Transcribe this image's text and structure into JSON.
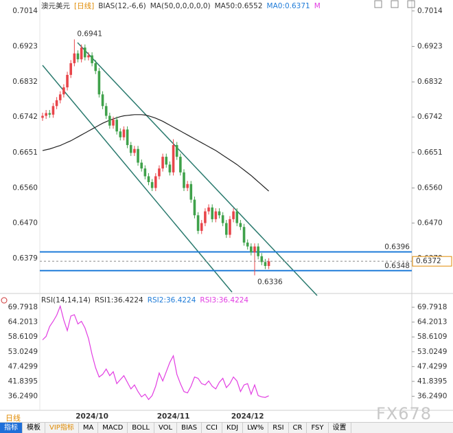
{
  "chart_data": [
    {
      "type": "candlestick",
      "symbol": "澳元美元",
      "period_tag": "[日线]",
      "legend": [
        "BIAS(12,-6,6)",
        "MA(50,0,0,0,0,0)",
        "MA50:0.6552",
        "MA0:0.6371",
        "M"
      ],
      "categories": [
        null,
        null,
        null,
        null,
        null,
        null,
        null,
        null,
        null,
        null,
        null,
        null,
        null,
        null,
        "2024/10",
        null,
        null,
        null,
        null,
        null,
        null,
        null,
        null,
        null,
        null,
        null,
        null,
        null,
        null,
        null,
        null,
        null,
        null,
        null,
        null,
        null,
        null,
        "2024/11",
        null,
        null,
        null,
        null,
        null,
        null,
        null,
        null,
        null,
        null,
        null,
        null,
        null,
        null,
        null,
        null,
        null,
        null,
        null,
        null,
        "2024/12",
        null,
        null,
        null,
        null,
        null,
        null
      ],
      "open": [
        0.674,
        0.6745,
        0.6752,
        0.6748,
        0.677,
        0.6785,
        0.68,
        0.6818,
        0.685,
        0.688,
        0.6905,
        0.689,
        0.692,
        0.6895,
        0.69,
        0.688,
        0.686,
        0.68,
        0.677,
        0.6745,
        0.672,
        0.6735,
        0.6705,
        0.669,
        0.671,
        0.667,
        0.665,
        0.666,
        0.6625,
        0.661,
        0.659,
        0.6575,
        0.656,
        0.659,
        0.661,
        0.664,
        0.662,
        0.66,
        0.667,
        0.664,
        0.66,
        0.656,
        0.657,
        0.653,
        0.649,
        0.645,
        0.647,
        0.65,
        0.651,
        0.648,
        0.65,
        0.649,
        0.647,
        0.644,
        0.648,
        0.65,
        0.647,
        0.646,
        0.642,
        0.641,
        0.6395,
        0.641,
        0.6385,
        0.637,
        0.636
      ],
      "high": [
        0.6753,
        0.676,
        0.676,
        0.6778,
        0.6793,
        0.6808,
        0.6826,
        0.6858,
        0.6888,
        0.6941,
        0.6913,
        0.6928,
        0.6928,
        0.6908,
        0.6908,
        0.6888,
        0.6868,
        0.6808,
        0.6778,
        0.6753,
        0.6743,
        0.6743,
        0.6713,
        0.6718,
        0.6718,
        0.6678,
        0.6668,
        0.6668,
        0.6633,
        0.6618,
        0.6598,
        0.6583,
        0.6598,
        0.6618,
        0.6648,
        0.6648,
        0.6628,
        0.6685,
        0.6678,
        0.6648,
        0.6608,
        0.6578,
        0.6578,
        0.6538,
        0.6498,
        0.6478,
        0.6508,
        0.6518,
        0.6518,
        0.6508,
        0.6508,
        0.6498,
        0.6478,
        0.6488,
        0.6508,
        0.6508,
        0.6478,
        0.6468,
        0.6428,
        0.6418,
        0.6418,
        0.6418,
        0.6393,
        0.6378,
        0.638
      ],
      "low": [
        0.6732,
        0.6737,
        0.674,
        0.674,
        0.6762,
        0.6777,
        0.6792,
        0.681,
        0.6842,
        0.6872,
        0.6882,
        0.6882,
        0.6887,
        0.6887,
        0.6872,
        0.6852,
        0.6792,
        0.6762,
        0.6737,
        0.6712,
        0.6712,
        0.6697,
        0.6682,
        0.6682,
        0.6662,
        0.6642,
        0.6642,
        0.6617,
        0.6602,
        0.6582,
        0.6567,
        0.6552,
        0.6552,
        0.6582,
        0.6602,
        0.6612,
        0.6592,
        0.6592,
        0.6632,
        0.6592,
        0.6552,
        0.6552,
        0.6522,
        0.6482,
        0.6442,
        0.6442,
        0.6462,
        0.6492,
        0.6472,
        0.6472,
        0.6482,
        0.6462,
        0.6432,
        0.6432,
        0.6472,
        0.6462,
        0.6452,
        0.6412,
        0.6402,
        0.6387,
        0.6336,
        0.6377,
        0.6362,
        0.6352,
        0.6352
      ],
      "close": [
        0.6745,
        0.6752,
        0.6748,
        0.677,
        0.6785,
        0.68,
        0.6818,
        0.685,
        0.688,
        0.6905,
        0.689,
        0.692,
        0.6895,
        0.69,
        0.688,
        0.686,
        0.68,
        0.677,
        0.6745,
        0.672,
        0.6735,
        0.6705,
        0.669,
        0.671,
        0.667,
        0.665,
        0.666,
        0.6625,
        0.661,
        0.659,
        0.6575,
        0.656,
        0.659,
        0.661,
        0.664,
        0.662,
        0.66,
        0.667,
        0.664,
        0.66,
        0.656,
        0.657,
        0.653,
        0.649,
        0.645,
        0.647,
        0.65,
        0.651,
        0.648,
        0.65,
        0.649,
        0.647,
        0.644,
        0.648,
        0.65,
        0.647,
        0.646,
        0.642,
        0.641,
        0.6395,
        0.641,
        0.6385,
        0.637,
        0.636,
        0.6372
      ],
      "up_color": "#e8454a",
      "down_color": "#3fa14a",
      "ma": {
        "color": "#222222",
        "values": [
          0.6656,
          0.6658,
          0.666,
          0.6663,
          0.6666,
          0.6669,
          0.6673,
          0.6677,
          0.6681,
          0.6686,
          0.6691,
          0.6696,
          0.6701,
          0.6706,
          0.6711,
          0.6716,
          0.6721,
          0.6726,
          0.673,
          0.6734,
          0.6737,
          0.674,
          0.6743,
          0.6745,
          0.6746,
          0.6747,
          0.6748,
          0.6748,
          0.6748,
          0.6747,
          0.6745,
          0.6742,
          0.6739,
          0.6735,
          0.6731,
          0.6726,
          0.6721,
          0.6716,
          0.6711,
          0.6706,
          0.6701,
          0.6696,
          0.6691,
          0.6686,
          0.6681,
          0.6676,
          0.6671,
          0.6666,
          0.6661,
          0.6656,
          0.665,
          0.6644,
          0.6638,
          0.6632,
          0.6626,
          0.662,
          0.6613,
          0.6606,
          0.6599,
          0.6592,
          0.6584,
          0.6576,
          0.6568,
          0.656,
          0.6552
        ]
      },
      "hlines": [
        {
          "value": 0.6396,
          "color": "#1e7bd8"
        },
        {
          "value": 0.6348,
          "color": "#1e7bd8"
        }
      ],
      "ylim": [
        0.6293,
        0.7042
      ],
      "yticks": [
        0.7014,
        0.6923,
        0.6832,
        0.6742,
        0.6651,
        {
          "value": 0.656,
          "label": "0.6560"
        },
        {
          "value": 0.647,
          "label": "0.6470"
        },
        0.6379
      ]
    },
    {
      "type": "line",
      "title": "RSI(14,14,14)",
      "legend": [
        "RSI1:36.4224",
        "RSI2:36.4224",
        "RSI3:36.4224"
      ],
      "series": [
        {
          "name": "RSI1",
          "color": "#e23de2",
          "values": [
            57.5,
            58.8,
            62.5,
            64.5,
            66.8,
            70.2,
            65.0,
            61.0,
            66.5,
            67.0,
            63.5,
            64.5,
            62.0,
            58.0,
            52.0,
            47.0,
            43.5,
            44.5,
            46.5,
            44.0,
            45.5,
            41.0,
            42.5,
            44.0,
            41.5,
            39.0,
            40.5,
            38.0,
            36.0,
            37.0,
            35.0,
            36.5,
            40.0,
            45.0,
            42.0,
            45.5,
            49.0,
            51.5,
            44.5,
            41.0,
            38.0,
            37.5,
            40.0,
            43.5,
            43.0,
            41.0,
            40.5,
            42.0,
            40.0,
            39.0,
            41.5,
            43.0,
            39.5,
            41.0,
            43.5,
            42.0,
            38.0,
            40.5,
            41.0,
            37.0,
            40.5,
            36.5,
            36.0,
            35.8,
            36.4224
          ]
        }
      ],
      "ylim": [
        31.45,
        73.7
      ],
      "yticks": [
        69.7918,
        64.2013,
        58.6109,
        53.0249,
        47.4299,
        41.8395,
        {
          "value": 36.249,
          "label": "36.2490"
        }
      ]
    }
  ],
  "period": "日线",
  "toolbar": [
    "指标",
    "模板",
    "VIP指标",
    "MA",
    "MACD",
    "BOLL",
    "VOL",
    "BIAS",
    "CCI",
    "KDJ",
    "LW%",
    "RSI",
    "CR",
    "FSY",
    "设置"
  ],
  "watermark": "FX678"
}
